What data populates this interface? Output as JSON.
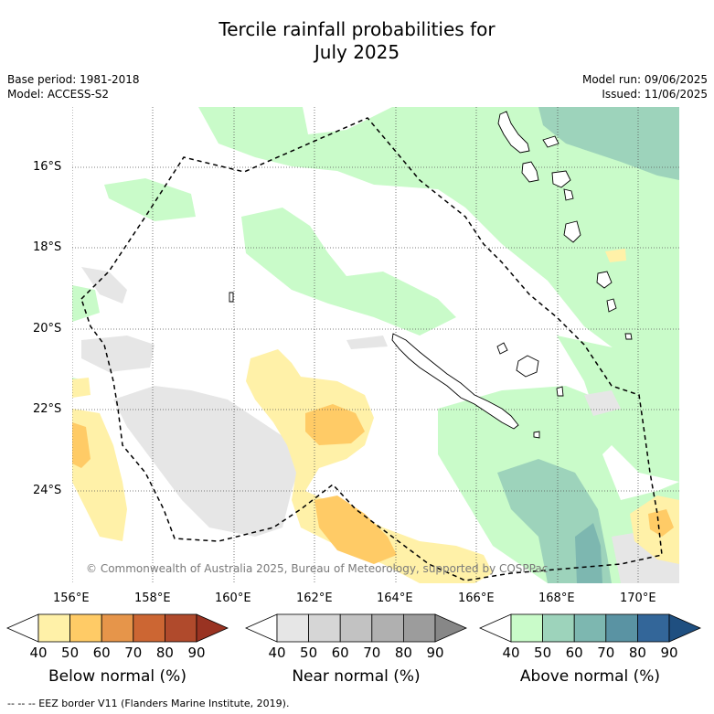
{
  "title_line1": "Tercile rainfall probabilities for",
  "title_line2": "July 2025",
  "base_period": "Base period: 1981-2018",
  "model": "Model: ACCESS-S2",
  "model_run": "Model run: 09/06/2025",
  "issued": "Issued: 11/06/2025",
  "copyright": "© Commonwealth of Australia 2025, Bureau of Meteorology, supported by COSPPac",
  "map": {
    "lon_range": [
      155.0,
      170.0
    ],
    "lat_range": [
      -25.0,
      -15.25
    ],
    "lon_ticks": [
      "156°E",
      "158°E",
      "160°E",
      "162°E",
      "164°E",
      "166°E",
      "168°E",
      "170°E"
    ],
    "lat_ticks": [
      "16°S",
      "18°S",
      "20°S",
      "22°S",
      "24°S"
    ]
  },
  "colorbars": [
    {
      "name": "Below normal (%)",
      "ticks": [
        "40",
        "50",
        "60",
        "70",
        "80",
        "90"
      ],
      "colors": [
        "#ffffff",
        "#fff1a8",
        "#ffcb66",
        "#e6954a",
        "#cc6633",
        "#b04a2c",
        "#993322"
      ]
    },
    {
      "name": "Near normal (%)",
      "ticks": [
        "40",
        "50",
        "60",
        "70",
        "80",
        "90"
      ],
      "colors": [
        "#ffffff",
        "#e6e6e6",
        "#d6d6d6",
        "#c2c2c2",
        "#b0b0b0",
        "#9c9c9c",
        "#878787"
      ]
    },
    {
      "name": "Above normal (%)",
      "ticks": [
        "40",
        "50",
        "60",
        "70",
        "80",
        "90"
      ],
      "colors": [
        "#ffffff",
        "#c9fbc9",
        "#9dd3bb",
        "#7db7b0",
        "#5a93a3",
        "#336699",
        "#1f4f80"
      ]
    }
  ],
  "legend": "--  --  -- EEZ border V11 (Flanders Marine Institute, 2019)."
}
